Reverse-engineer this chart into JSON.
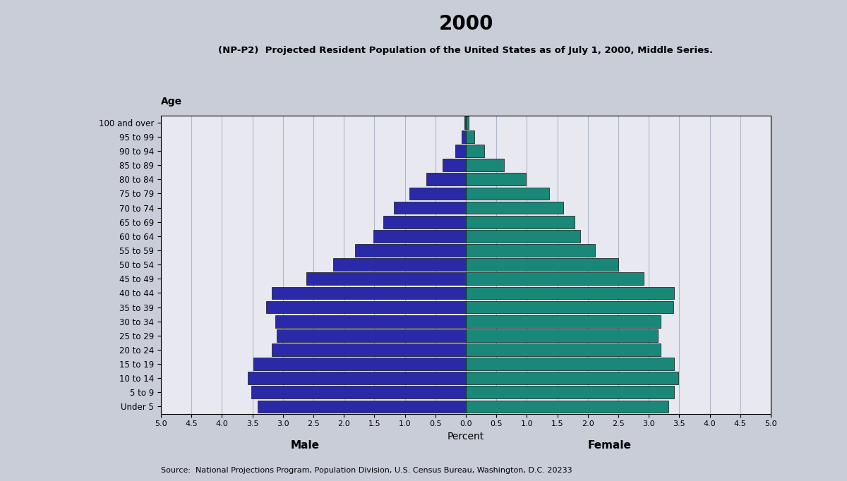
{
  "title_year": "2000",
  "subtitle": "(NP-P2)  Projected Resident Population of the United States as of July 1, 2000, Middle Series.",
  "source": "Source:  National Projections Program, Population Division, U.S. Census Bureau, Washington, D.C. 20233",
  "age_labels": [
    "100 and over",
    "95 to 99",
    "90 to 94",
    "85 to 89",
    "80 to 84",
    "75 to 79",
    "70 to 74",
    "65 to 69",
    "60 to 64",
    "55 to 59",
    "50 to 54",
    "45 to 49",
    "40 to 44",
    "35 to 39",
    "30 to 34",
    "25 to 29",
    "20 to 24",
    "15 to 19",
    "10 to 14",
    "5 to 9",
    "Under 5"
  ],
  "male": [
    0.02,
    0.07,
    0.17,
    0.38,
    0.65,
    0.93,
    1.18,
    1.35,
    1.52,
    1.82,
    2.18,
    2.62,
    3.18,
    3.28,
    3.12,
    3.1,
    3.18,
    3.48,
    3.58,
    3.52,
    3.42
  ],
  "female": [
    0.05,
    0.14,
    0.3,
    0.62,
    0.98,
    1.36,
    1.6,
    1.78,
    1.88,
    2.12,
    2.5,
    2.92,
    3.42,
    3.4,
    3.2,
    3.15,
    3.2,
    3.42,
    3.48,
    3.42,
    3.32
  ],
  "male_color": "#2A2AA8",
  "female_color": "#1A8878",
  "xlim": 5.0,
  "xlabel": "Percent",
  "ylabel": "Age",
  "plot_bg_color": "#e8e8f0",
  "fig_bg_color": "#c8cdd8",
  "grid_color": "#b0b8c8",
  "bar_edge_color": "#111111",
  "bar_linewidth": 0.5
}
